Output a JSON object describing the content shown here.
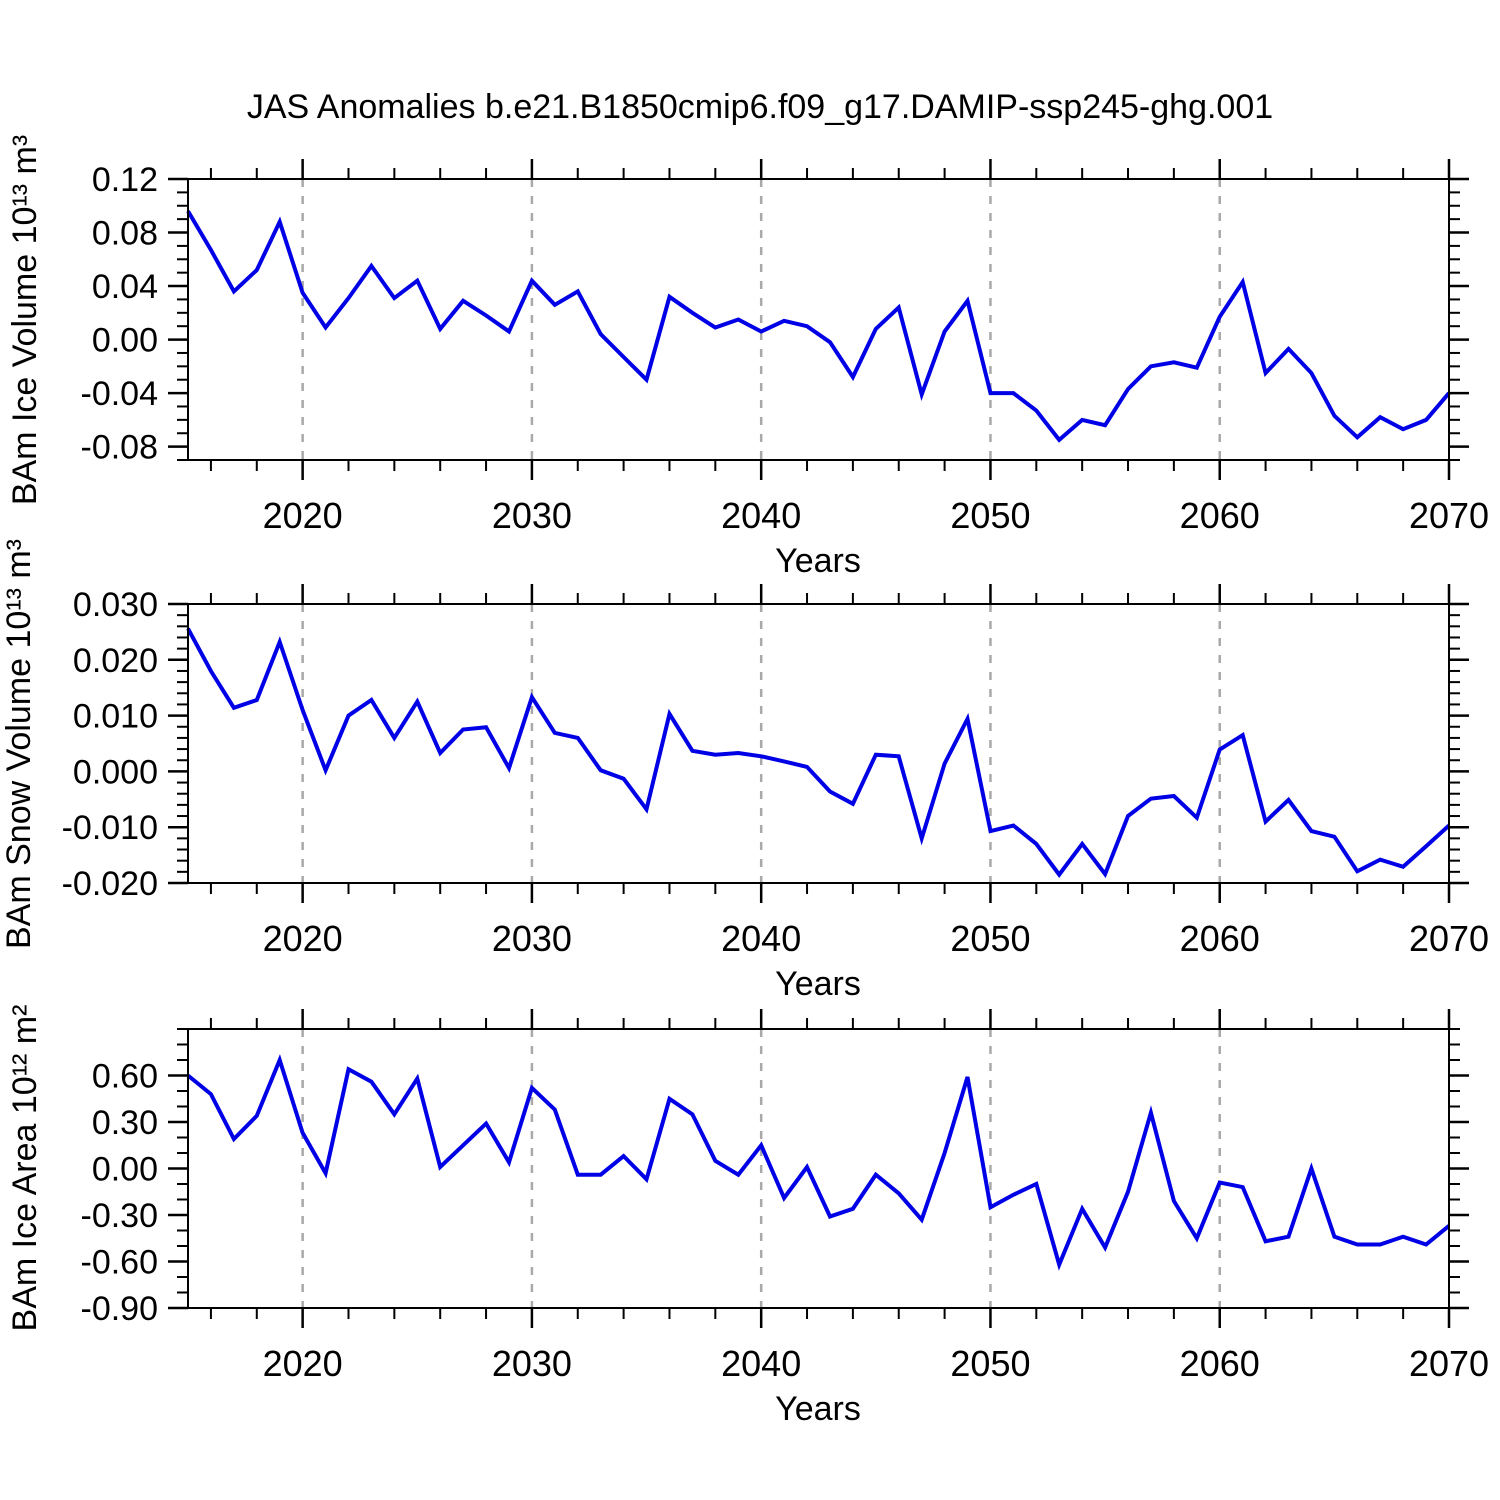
{
  "title": "JAS Anomalies b.e21.B1850cmip6.f09_g17.DAMIP-ssp245-ghg.001",
  "colors": {
    "line": "#0000E6",
    "grid": "#A9A9A9",
    "axis": "#000000"
  },
  "chart_data": [
    {
      "type": "line",
      "ylabel": "BAm Ice Volume 10¹³ m³",
      "xlabel": "Years",
      "x_start": 2015,
      "x_end": 2070,
      "x_step": 1,
      "ylim": [
        -0.09,
        0.12
      ],
      "ytick_values": [
        0.12,
        0.08,
        0.04,
        0.0,
        -0.04,
        -0.08
      ],
      "ytick_labels": [
        "0.12",
        "0.08",
        "0.04",
        "0.00",
        "-0.04",
        "-0.08"
      ],
      "ytick_minor_step": 0.01,
      "xtick_values": [
        2020,
        2030,
        2040,
        2050,
        2060,
        2070
      ],
      "xtick_labels": [
        "2020",
        "2030",
        "2040",
        "2050",
        "2060",
        "2070"
      ],
      "xtick_minor_step": 2,
      "grid_x": [
        2020,
        2030,
        2040,
        2050,
        2060
      ],
      "values": [
        0.096,
        0.067,
        0.036,
        0.052,
        0.088,
        0.035,
        0.009,
        0.031,
        0.055,
        0.031,
        0.044,
        0.008,
        0.029,
        0.018,
        0.006,
        0.044,
        0.026,
        0.036,
        0.004,
        -0.013,
        -0.03,
        0.032,
        0.02,
        0.009,
        0.015,
        0.006,
        0.014,
        0.01,
        -0.002,
        -0.028,
        0.008,
        0.024,
        -0.041,
        0.006,
        0.029,
        -0.04,
        -0.04,
        -0.053,
        -0.075,
        -0.06,
        -0.064,
        -0.037,
        -0.02,
        -0.017,
        -0.021,
        0.017,
        0.043,
        -0.025,
        -0.007,
        -0.025,
        -0.057,
        -0.073,
        -0.058,
        -0.067,
        -0.06,
        -0.04
      ]
    },
    {
      "type": "line",
      "ylabel": "BAm Snow Volume 10¹³ m³",
      "xlabel": "Years",
      "x_start": 2015,
      "x_end": 2070,
      "x_step": 1,
      "ylim": [
        -0.02,
        0.03
      ],
      "ytick_values": [
        0.03,
        0.02,
        0.01,
        0.0,
        -0.01,
        -0.02
      ],
      "ytick_labels": [
        "0.030",
        "0.020",
        "0.010",
        "0.000",
        "-0.010",
        "-0.020"
      ],
      "ytick_minor_step": 0.002,
      "xtick_values": [
        2020,
        2030,
        2040,
        2050,
        2060,
        2070
      ],
      "xtick_labels": [
        "2020",
        "2030",
        "2040",
        "2050",
        "2060",
        "2070"
      ],
      "xtick_minor_step": 2,
      "grid_x": [
        2020,
        2030,
        2040,
        2050,
        2060
      ],
      "values": [
        0.0256,
        0.018,
        0.0114,
        0.0128,
        0.0232,
        0.011,
        0.0002,
        0.01,
        0.0128,
        0.006,
        0.0125,
        0.0033,
        0.0075,
        0.0079,
        0.0006,
        0.0133,
        0.0069,
        0.006,
        0.0002,
        -0.0013,
        -0.0068,
        0.0103,
        0.0037,
        0.003,
        0.0033,
        0.0027,
        0.0018,
        0.0008,
        -0.0036,
        -0.0058,
        0.003,
        0.0027,
        -0.012,
        0.0014,
        0.0094,
        -0.0107,
        -0.0097,
        -0.013,
        -0.0185,
        -0.013,
        -0.0184,
        -0.008,
        -0.0049,
        -0.0044,
        -0.0083,
        0.0039,
        0.0065,
        -0.009,
        -0.0051,
        -0.0107,
        -0.0117,
        -0.0179,
        -0.0158,
        -0.0171,
        -0.0134,
        -0.0097
      ]
    },
    {
      "type": "line",
      "ylabel": "BAm Ice Area 10¹² m²",
      "xlabel": "Years",
      "x_start": 2015,
      "x_end": 2070,
      "x_step": 1,
      "ylim": [
        -0.9,
        0.9
      ],
      "ytick_values": [
        0.6,
        0.3,
        0.0,
        -0.3,
        -0.6,
        -0.9
      ],
      "ytick_labels": [
        "0.60",
        "0.30",
        "0.00",
        "-0.30",
        "-0.60",
        "-0.90"
      ],
      "ytick_minor_step": 0.1,
      "xtick_values": [
        2020,
        2030,
        2040,
        2050,
        2060,
        2070
      ],
      "xtick_labels": [
        "2020",
        "2030",
        "2040",
        "2050",
        "2060",
        "2070"
      ],
      "xtick_minor_step": 2,
      "grid_x": [
        2020,
        2030,
        2040,
        2050,
        2060
      ],
      "values": [
        0.6,
        0.48,
        0.19,
        0.34,
        0.7,
        0.23,
        -0.03,
        0.64,
        0.56,
        0.35,
        0.58,
        0.01,
        0.15,
        0.29,
        0.04,
        0.52,
        0.38,
        -0.04,
        -0.04,
        0.08,
        -0.07,
        0.45,
        0.35,
        0.05,
        -0.04,
        0.15,
        -0.19,
        0.01,
        -0.31,
        -0.26,
        -0.04,
        -0.16,
        -0.33,
        0.1,
        0.59,
        -0.25,
        -0.17,
        -0.1,
        -0.62,
        -0.26,
        -0.51,
        -0.15,
        0.36,
        -0.21,
        -0.45,
        -0.09,
        -0.12,
        -0.47,
        -0.44,
        0.0,
        -0.44,
        -0.49,
        -0.49,
        -0.44,
        -0.49,
        -0.37
      ]
    }
  ]
}
